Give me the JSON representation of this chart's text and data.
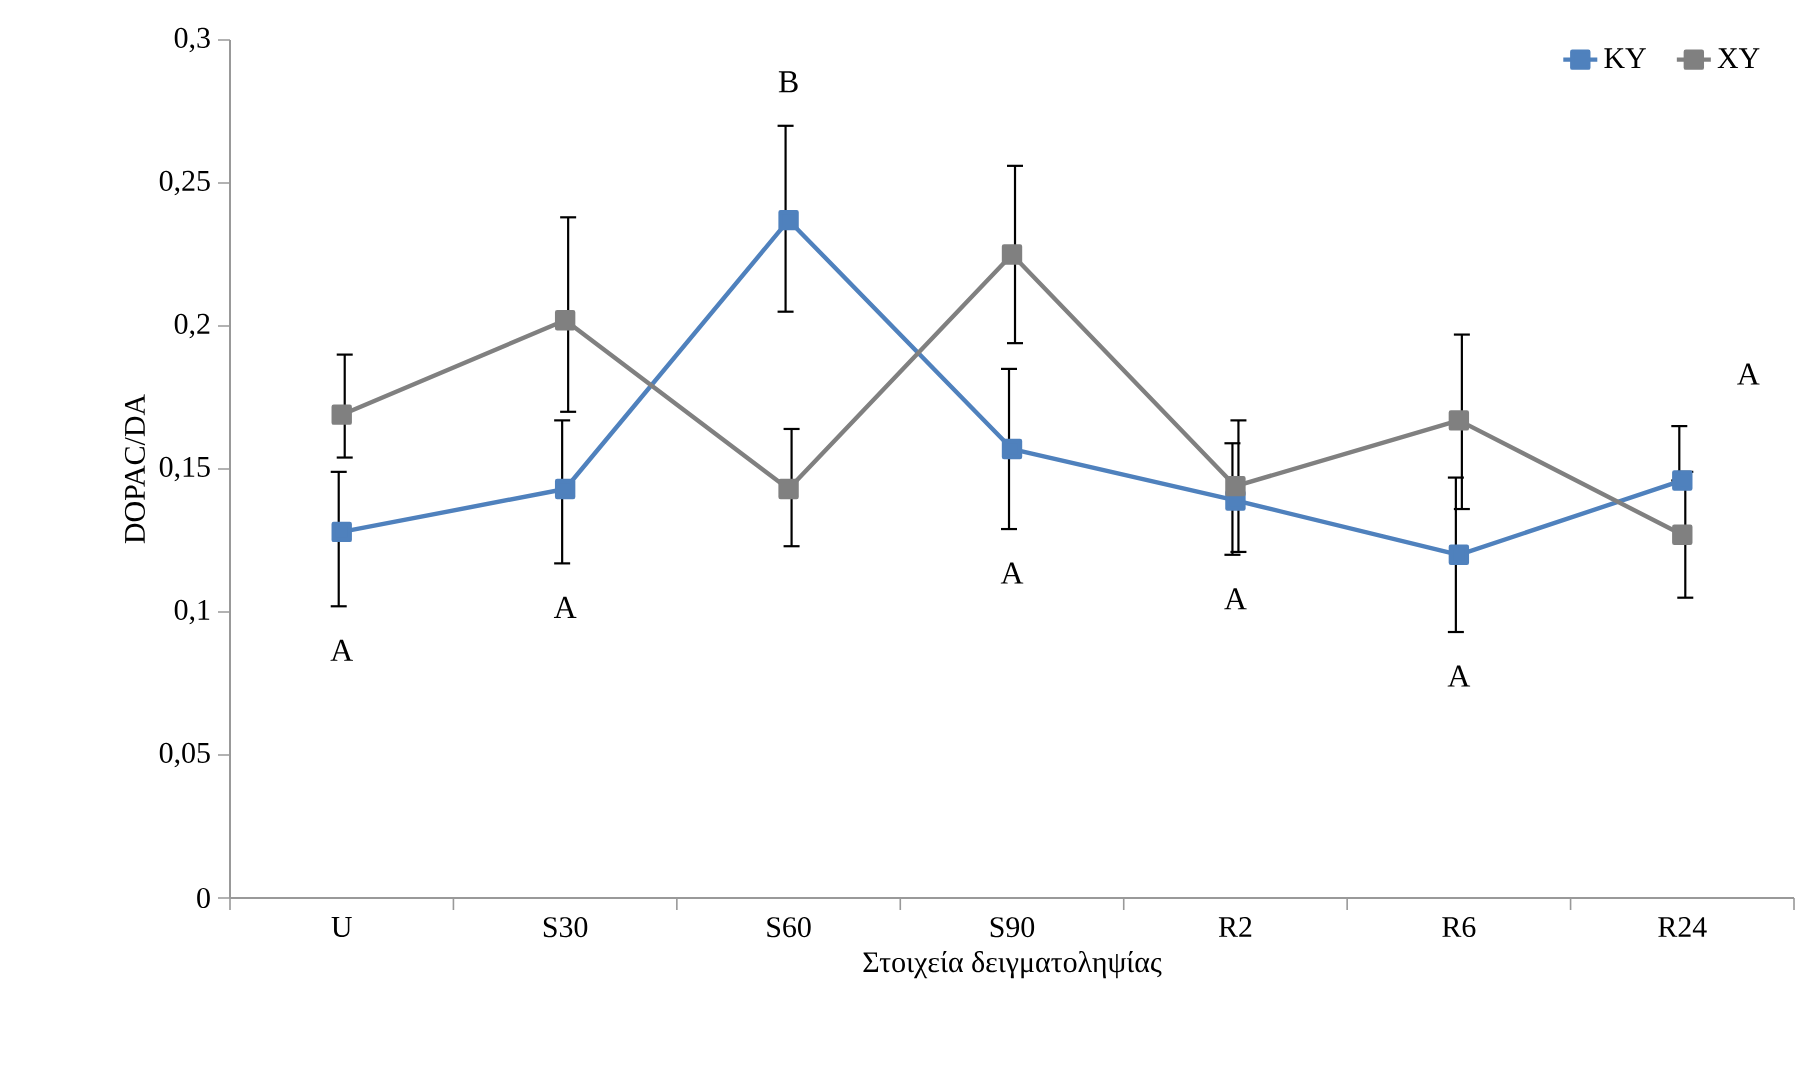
{
  "chart_data": {
    "type": "line",
    "xlabel": "Στοιχεία δειγματοληψίας",
    "ylabel": "DOPAC/DA",
    "categories": [
      "U",
      "S30",
      "S60",
      "S90",
      "R2",
      "R6",
      "R24"
    ],
    "series": [
      {
        "name": "KY",
        "color": "#4f81bd",
        "values": [
          0.128,
          0.143,
          0.237,
          0.157,
          0.139,
          0.12,
          0.146
        ],
        "errors": [
          [
            0.102,
            0.149
          ],
          [
            0.117,
            0.167
          ],
          [
            0.205,
            0.27
          ],
          [
            0.129,
            0.185
          ],
          [
            0.12,
            0.159
          ],
          [
            0.093,
            0.147
          ],
          [
            0.146,
            0.165
          ]
        ]
      },
      {
        "name": "XY",
        "color": "#808080",
        "values": [
          0.169,
          0.202,
          0.143,
          0.225,
          0.144,
          0.167,
          0.127
        ],
        "errors": [
          [
            0.154,
            0.19
          ],
          [
            0.17,
            0.238
          ],
          [
            0.123,
            0.164
          ],
          [
            0.194,
            0.256
          ],
          [
            0.121,
            0.167
          ],
          [
            0.136,
            0.197
          ],
          [
            0.105,
            0.149
          ]
        ]
      }
    ],
    "ylim": [
      0,
      0.3
    ],
    "yticks": [
      0,
      {
        "value": 0.05,
        "label": "0,05"
      },
      {
        "value": 0.1,
        "label": "0,1"
      },
      {
        "value": 0.15,
        "label": "0,15"
      },
      {
        "value": 0.2,
        "label": "0,2"
      },
      {
        "value": 0.25,
        "label": "0,25"
      },
      {
        "value": 0.3,
        "label": "0,3"
      }
    ],
    "annotations": [
      "A",
      "A",
      "B",
      "A",
      "A",
      "A",
      "A"
    ],
    "grid": false,
    "legend": "top right",
    "marker": "square",
    "line_style": "solid"
  }
}
